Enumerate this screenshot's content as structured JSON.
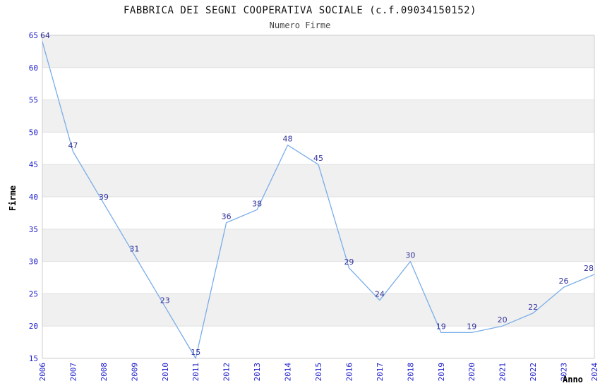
{
  "header": {
    "title": "FABBRICA DEI SEGNI COOPERATIVA SOCIALE (c.f.09034150152)",
    "subtitle": "Numero Firme"
  },
  "chart_data": {
    "type": "line",
    "title": "FABBRICA DEI SEGNI COOPERATIVA SOCIALE (c.f.09034150152)",
    "subtitle": "Numero Firme",
    "x": [
      2006,
      2007,
      2008,
      2009,
      2010,
      2011,
      2012,
      2013,
      2014,
      2015,
      2016,
      2017,
      2018,
      2019,
      2020,
      2021,
      2022,
      2023,
      2024
    ],
    "series": [
      {
        "name": "Numero Firme",
        "values": [
          64,
          47,
          39,
          31,
          23,
          15,
          36,
          38,
          48,
          45,
          29,
          24,
          30,
          19,
          19,
          20,
          22,
          26,
          28
        ]
      }
    ],
    "xlabel": "Anno",
    "ylabel": "Firme",
    "ylim": [
      15,
      65
    ],
    "ytick_step": 5,
    "yticks": [
      15,
      20,
      25,
      30,
      35,
      40,
      45,
      50,
      55,
      60,
      65
    ],
    "legend": "none",
    "grid": "horizontal-bands-alternating",
    "point_labels_visible": true,
    "colors": {
      "line": "#7aade8",
      "point_label": "#31319b",
      "tick_label": "#2121cc",
      "band": "#f0f0f0",
      "grid_line": "#e0e0e0",
      "plot_border": "#cccccc",
      "title": "#111111",
      "subtitle": "#444444"
    }
  }
}
